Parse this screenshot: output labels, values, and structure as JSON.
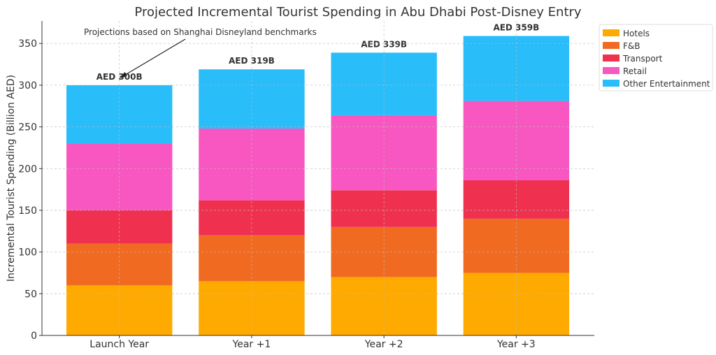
{
  "chart_data": {
    "type": "bar",
    "stacked": true,
    "title": "Projected Incremental Tourist Spending in Abu Dhabi Post-Disney Entry",
    "xlabel": "",
    "ylabel": "Incremental Tourist Spending (Billion AED)",
    "ylim": [
      0,
      377
    ],
    "yticks": [
      0,
      50,
      100,
      150,
      200,
      250,
      300,
      350
    ],
    "grid": true,
    "legend_position": "top-right",
    "categories": [
      "Launch Year",
      "Year +1",
      "Year +2",
      "Year +3"
    ],
    "series": [
      {
        "name": "Hotels",
        "color": "#FFAA00",
        "values": [
          60,
          65,
          70,
          75
        ]
      },
      {
        "name": "F&B",
        "color": "#F06A22",
        "values": [
          50,
          55,
          60,
          65
        ]
      },
      {
        "name": "Transport",
        "color": "#F0304F",
        "values": [
          40,
          42,
          44,
          46
        ]
      },
      {
        "name": "Retail",
        "color": "#F857C1",
        "values": [
          80,
          86,
          90,
          95
        ]
      },
      {
        "name": "Other Entertainment",
        "color": "#29BDFA",
        "values": [
          70,
          71,
          75,
          78
        ]
      }
    ],
    "total_labels": [
      "AED 300B",
      "AED 319B",
      "AED 339B",
      "AED 359B"
    ],
    "annotation": {
      "text": "Projections based on Shanghai Disneyland benchmarks",
      "target_category": "Launch Year",
      "target_value": 300
    }
  }
}
